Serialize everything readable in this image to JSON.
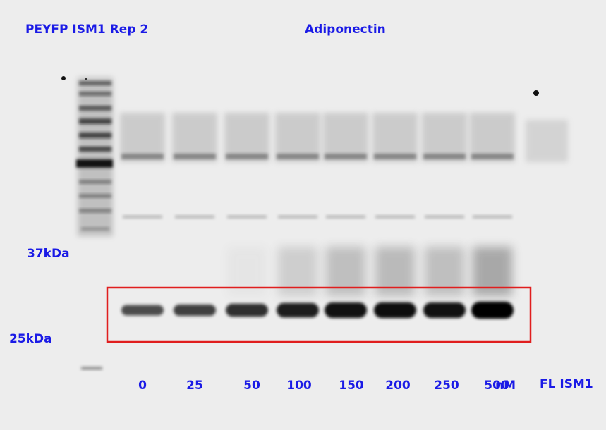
{
  "labels": {
    "title_left": "PEYFP ISM1 Rep 2",
    "title_center": "Adiponectin",
    "marker_37": "37kDa",
    "marker_25": "25kDa",
    "unit": "nM",
    "sample": "FL ISM1"
  },
  "lanes": [
    {
      "label": "0",
      "band_level": 0.35
    },
    {
      "label": "25",
      "band_level": 0.45
    },
    {
      "label": "50",
      "band_level": 0.6
    },
    {
      "label": "100",
      "band_level": 0.75
    },
    {
      "label": "150",
      "band_level": 0.85
    },
    {
      "label": "200",
      "band_level": 0.88
    },
    {
      "label": "250",
      "band_level": 0.85
    },
    {
      "label": "500",
      "band_level": 1.0
    }
  ],
  "colors": {
    "label_text": "#1a1ae6",
    "highlight_box": "#e01e1e",
    "membrane": "#ededed"
  }
}
